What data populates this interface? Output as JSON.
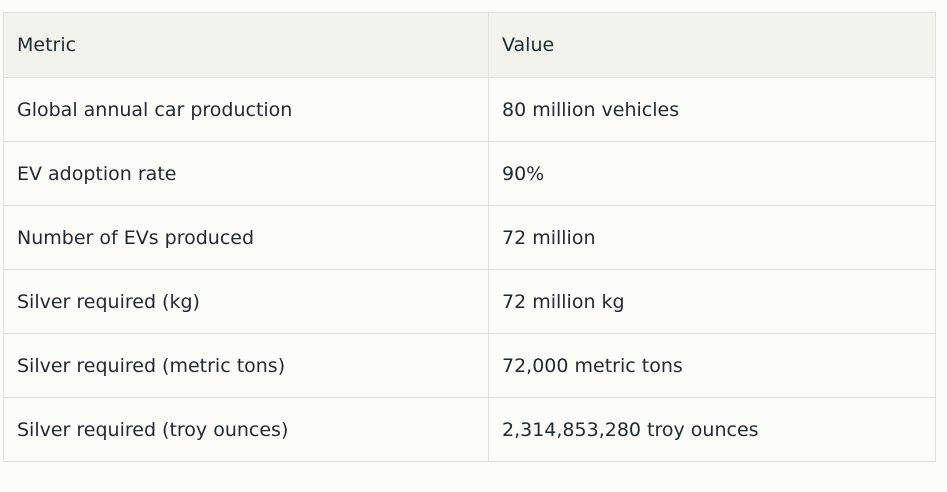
{
  "table": {
    "headers": [
      "Metric",
      "Value"
    ],
    "rows": [
      [
        "Global annual car production",
        "80 million vehicles"
      ],
      [
        "EV adoption rate",
        "90%"
      ],
      [
        "Number of EVs produced",
        "72 million"
      ],
      [
        "Silver required (kg)",
        "72 million kg"
      ],
      [
        "Silver required (metric tons)",
        "72,000 metric tons"
      ],
      [
        "Silver required (troy ounces)",
        "2,314,853,280 troy ounces"
      ]
    ]
  }
}
